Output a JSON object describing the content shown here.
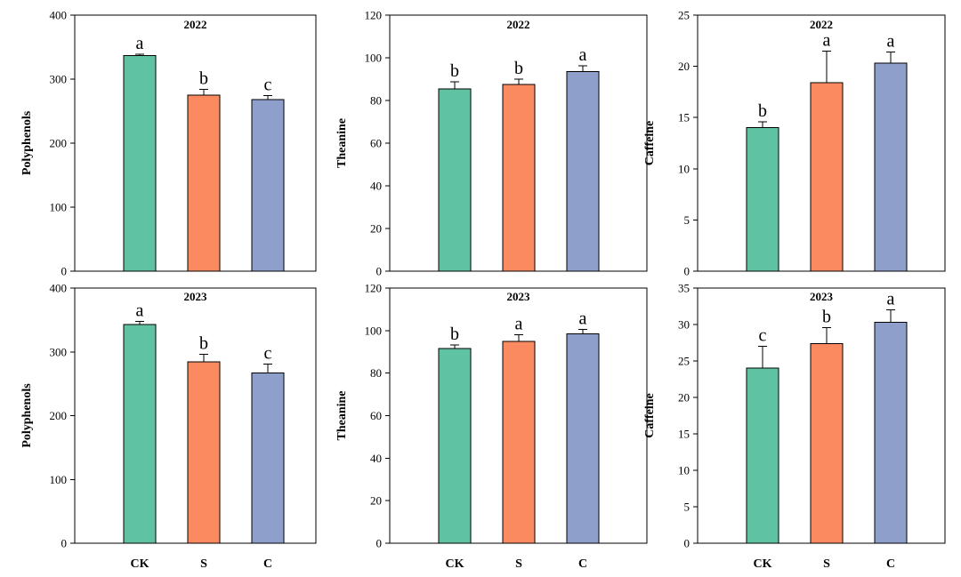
{
  "figure": {
    "colors": {
      "CK": "#5fc2a2",
      "S": "#fc8a61",
      "C": "#8e9fcc"
    }
  },
  "chart_data": [
    {
      "type": "bar",
      "title": "2022",
      "ylabel": "Polyphenols",
      "xlabel": "",
      "categories": [
        "CK",
        "S",
        "C"
      ],
      "show_category_labels": false,
      "values": [
        337,
        275,
        268
      ],
      "errors": [
        2,
        9,
        6
      ],
      "labels": [
        "a",
        "b",
        "c"
      ],
      "ylim": [
        0,
        400
      ],
      "yticks": [
        0,
        100,
        200,
        300,
        400
      ]
    },
    {
      "type": "bar",
      "title": "2022",
      "ylabel": "Theanine",
      "xlabel": "",
      "categories": [
        "CK",
        "S",
        "C"
      ],
      "show_category_labels": false,
      "values": [
        85.5,
        87.5,
        93.5
      ],
      "errors": [
        3.2,
        2.5,
        2.8
      ],
      "labels": [
        "b",
        "b",
        "a"
      ],
      "ylim": [
        0,
        120
      ],
      "yticks": [
        0,
        20,
        40,
        60,
        80,
        100,
        120
      ]
    },
    {
      "type": "bar",
      "title": "2022",
      "ylabel": "Caffeine",
      "xlabel": "",
      "categories": [
        "CK",
        "S",
        "C"
      ],
      "show_category_labels": false,
      "values": [
        14.0,
        18.4,
        20.3
      ],
      "errors": [
        0.6,
        3.1,
        1.1
      ],
      "labels": [
        "b",
        "a",
        "a"
      ],
      "ylim": [
        0,
        25
      ],
      "yticks": [
        0,
        5,
        10,
        15,
        20,
        25
      ]
    },
    {
      "type": "bar",
      "title": "2023",
      "ylabel": "Polyphenols",
      "xlabel": "",
      "categories": [
        "CK",
        "S",
        "C"
      ],
      "show_category_labels": true,
      "values": [
        343,
        284,
        267
      ],
      "errors": [
        5,
        12,
        14
      ],
      "labels": [
        "a",
        "b",
        "c"
      ],
      "ylim": [
        0,
        400
      ],
      "yticks": [
        0,
        100,
        200,
        300,
        400
      ]
    },
    {
      "type": "bar",
      "title": "2023",
      "ylabel": "Theanine",
      "xlabel": "",
      "categories": [
        "CK",
        "S",
        "C"
      ],
      "show_category_labels": true,
      "values": [
        91.5,
        95.0,
        98.5
      ],
      "errors": [
        1.8,
        3.0,
        2.0
      ],
      "labels": [
        "b",
        "a",
        "a"
      ],
      "ylim": [
        0,
        120
      ],
      "yticks": [
        0,
        20,
        40,
        60,
        80,
        100,
        120
      ]
    },
    {
      "type": "bar",
      "title": "2023",
      "ylabel": "Caffeine",
      "xlabel": "",
      "categories": [
        "CK",
        "S",
        "C"
      ],
      "show_category_labels": true,
      "values": [
        24.0,
        27.4,
        30.3
      ],
      "errors": [
        3.0,
        2.2,
        1.7
      ],
      "labels": [
        "c",
        "b",
        "a"
      ],
      "ylim": [
        0,
        35
      ],
      "yticks": [
        0,
        5,
        10,
        15,
        20,
        25,
        30,
        35
      ]
    }
  ]
}
